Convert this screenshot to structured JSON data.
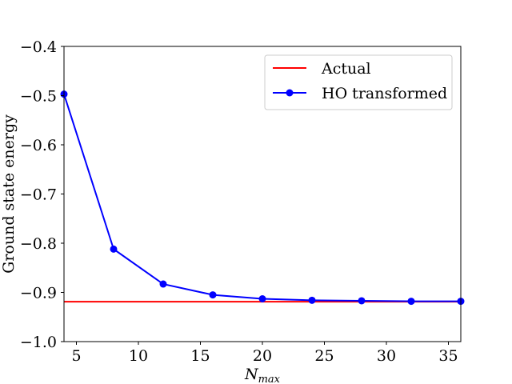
{
  "chart_data": {
    "type": "line",
    "title": "",
    "xlabel": "N",
    "xlabel_sub": "max",
    "ylabel": "Ground state energy",
    "xlim": [
      4,
      36
    ],
    "ylim": [
      -1.0,
      -0.4
    ],
    "x_ticks": [
      5,
      10,
      15,
      20,
      25,
      30,
      35
    ],
    "x_tick_labels": [
      "5",
      "10",
      "15",
      "20",
      "25",
      "30",
      "35"
    ],
    "y_ticks": [
      -1.0,
      -0.9,
      -0.8,
      -0.7,
      -0.6,
      -0.5,
      -0.4
    ],
    "y_tick_labels": [
      "−1.0",
      "−0.9",
      "−0.8",
      "−0.7",
      "−0.6",
      "−0.5",
      "−0.4"
    ],
    "grid": false,
    "legend_position": "upper right",
    "series": [
      {
        "name": "Actual",
        "style": "line",
        "color": "#ff0000",
        "x": [
          4,
          36
        ],
        "y": [
          -0.919,
          -0.919
        ]
      },
      {
        "name": "HO transformed",
        "style": "line-marker",
        "color": "#0000ff",
        "x": [
          4,
          8,
          12,
          16,
          20,
          24,
          28,
          32,
          36
        ],
        "y": [
          -0.497,
          -0.812,
          -0.883,
          -0.905,
          -0.913,
          -0.916,
          -0.917,
          -0.918,
          -0.918
        ]
      }
    ]
  }
}
